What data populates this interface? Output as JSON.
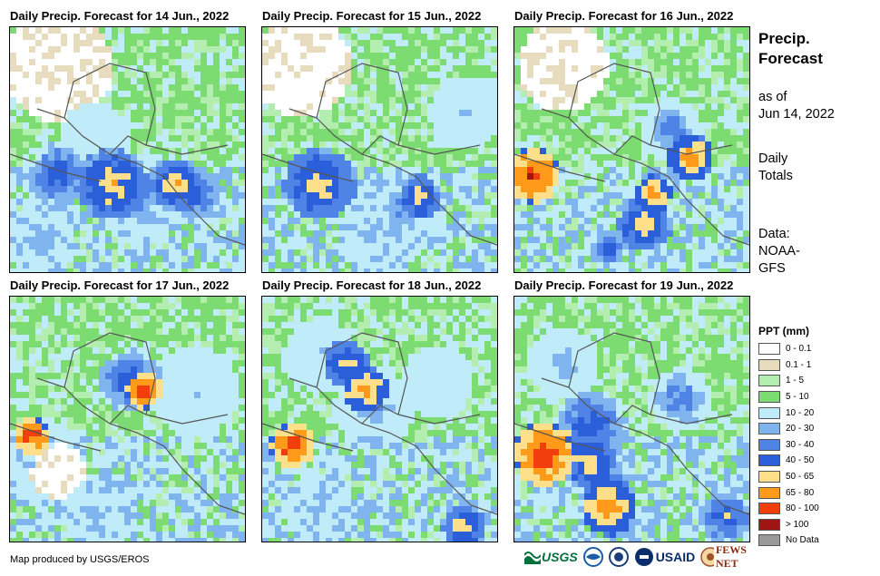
{
  "panels": [
    {
      "title": "Daily Precip. Forecast for 14 Jun., 2022",
      "seed": 14
    },
    {
      "title": "Daily Precip. Forecast for 15 Jun., 2022",
      "seed": 15
    },
    {
      "title": "Daily Precip. Forecast for 16 Jun., 2022",
      "seed": 16
    },
    {
      "title": "Daily Precip. Forecast for 17 Jun., 2022",
      "seed": 17
    },
    {
      "title": "Daily Precip. Forecast for 18 Jun., 2022",
      "seed": 18
    },
    {
      "title": "Daily Precip. Forecast for 19 Jun., 2022",
      "seed": 19
    }
  ],
  "side": {
    "title_line1": "Precip.",
    "title_line2": "Forecast",
    "asof_line1": "as of",
    "asof_line2": "Jun 14, 2022",
    "totals_line1": "Daily",
    "totals_line2": "Totals",
    "data_line1": "Data:",
    "data_line2": "NOAA-",
    "data_line3": "GFS"
  },
  "legend": {
    "title": "PPT (mm)",
    "items": [
      {
        "label": "0 - 0.1",
        "color": "#ffffff"
      },
      {
        "label": "0.1 - 1",
        "color": "#e8dcbf"
      },
      {
        "label": "1 - 5",
        "color": "#b3eeb0"
      },
      {
        "label": "5 - 10",
        "color": "#7ddc71"
      },
      {
        "label": "10 - 20",
        "color": "#bfecf8"
      },
      {
        "label": "20 - 30",
        "color": "#7fb4ee"
      },
      {
        "label": "30 - 40",
        "color": "#4f84e6"
      },
      {
        "label": "40 - 50",
        "color": "#2b5fd9"
      },
      {
        "label": "50 - 65",
        "color": "#ffe08a"
      },
      {
        "label": "65 - 80",
        "color": "#ff9a1a"
      },
      {
        "label": "80 - 100",
        "color": "#f23d0c"
      },
      {
        "label": "> 100",
        "color": "#a01414"
      },
      {
        "label": "No Data",
        "color": "#999999"
      }
    ]
  },
  "credit": "Map produced by USGS/EROS",
  "logos": {
    "usgs": "USGS",
    "usaid": "USAID",
    "fewsnet": "FEWS NET"
  },
  "colors": {
    "green_base": "#8fd98f",
    "coast": "#555555"
  }
}
